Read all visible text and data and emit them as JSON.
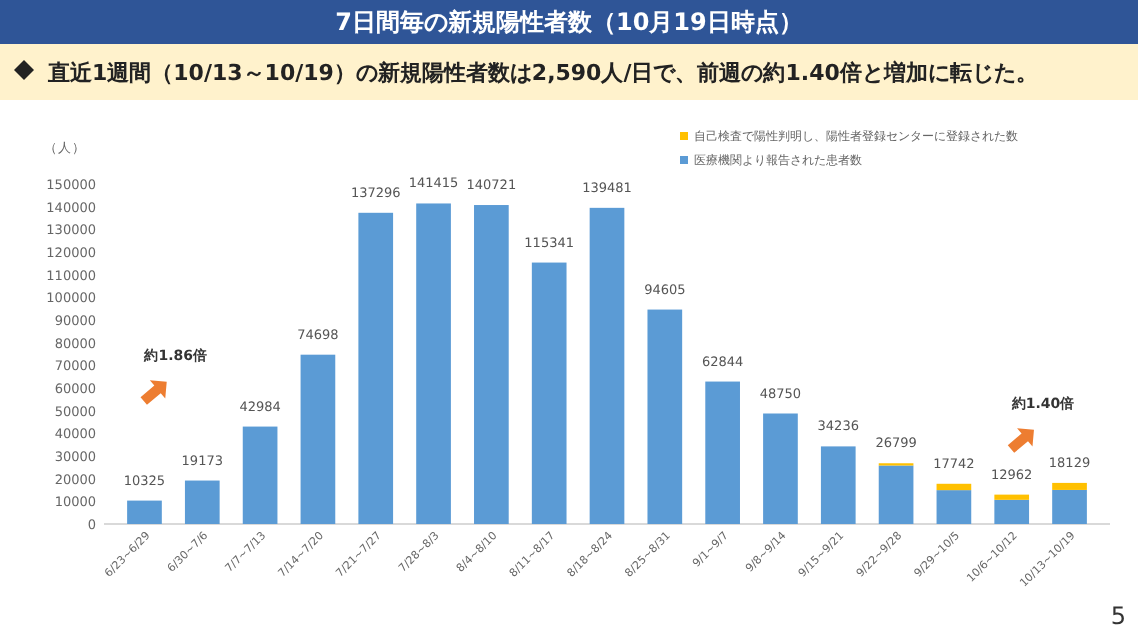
{
  "chart_data": {
    "type": "bar",
    "title": "7日間毎の新規陽性者数（10月19日時点）",
    "subtitle": "直近1週間（10/13～10/19）の新規陽性者数は2,590人/日で、前週の約1.40倍と増加に転じた。",
    "ylabel": "（人）",
    "categories": [
      "6/23~6/29",
      "6/30~7/6",
      "7/7~7/13",
      "7/14~7/20",
      "7/21~7/27",
      "7/28~8/3",
      "8/4~8/10",
      "8/11~8/17",
      "8/18~8/24",
      "8/25~8/31",
      "9/1~9/7",
      "9/8~9/14",
      "9/15~9/21",
      "9/22~9/28",
      "9/29~10/5",
      "10/6~10/12",
      "10/13~10/19"
    ],
    "stacked": true,
    "series": [
      {
        "name": "医療機関より報告された患者数",
        "color": "#5b9bd5",
        "values": [
          10325,
          19173,
          42984,
          74698,
          137296,
          141415,
          140721,
          115341,
          139481,
          94605,
          62844,
          48750,
          34236,
          25799,
          14942,
          10662,
          15029
        ]
      },
      {
        "name": "自己検査で陽性判明し、陽性者登録センターに登録された数",
        "color": "#ffc000",
        "values": [
          0,
          0,
          0,
          0,
          0,
          0,
          0,
          0,
          0,
          0,
          0,
          0,
          0,
          1000,
          2800,
          2300,
          3100
        ]
      }
    ],
    "totals": [
      "10325",
      "19173",
      "42984",
      "74698",
      "137296",
      "141415",
      "140721",
      "115341",
      "139481",
      "94605",
      "62844",
      "48750",
      "34236",
      "26799",
      "17742",
      "12962",
      "18129"
    ],
    "ylim": [
      0,
      150000
    ],
    "yticks": [
      0,
      10000,
      20000,
      30000,
      40000,
      50000,
      60000,
      70000,
      80000,
      90000,
      100000,
      110000,
      120000,
      130000,
      140000,
      150000
    ],
    "legend": "top right",
    "annotations": [
      "約1.86倍",
      "約1.40倍",
      "5"
    ]
  }
}
